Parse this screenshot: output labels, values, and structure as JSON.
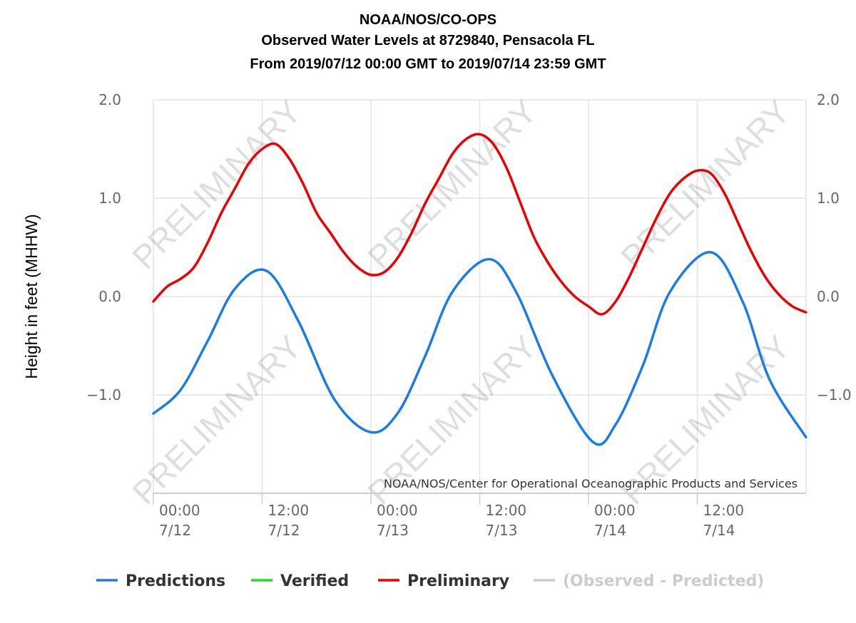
{
  "chart_data": {
    "type": "line",
    "title": [
      "NOAA/NOS/CO-OPS",
      "Observed Water Levels at 8729840, Pensacola FL",
      "From 2019/07/12 00:00 GMT to 2019/07/14 23:59 GMT"
    ],
    "ylabel": "Height in feet (MHHW)",
    "ylim": [
      -2.0,
      2.0
    ],
    "xlim": [
      "2019-07-12T00:00",
      "2019-07-15T00:00"
    ],
    "y_ticks": [
      {
        "value": 2.0,
        "label": "2.0"
      },
      {
        "value": 1.0,
        "label": "1.0"
      },
      {
        "value": 0.0,
        "label": "0.0"
      },
      {
        "value": -1.0,
        "label": "−1.0"
      }
    ],
    "x_ticks": [
      {
        "time": "2019-07-12T00:00",
        "time_label": "00:00",
        "date_label": "7/12"
      },
      {
        "time": "2019-07-12T12:00",
        "time_label": "12:00",
        "date_label": "7/12"
      },
      {
        "time": "2019-07-13T00:00",
        "time_label": "00:00",
        "date_label": "7/13"
      },
      {
        "time": "2019-07-13T12:00",
        "time_label": "12:00",
        "date_label": "7/13"
      },
      {
        "time": "2019-07-14T00:00",
        "time_label": "00:00",
        "date_label": "7/14"
      },
      {
        "time": "2019-07-14T12:00",
        "time_label": "12:00",
        "date_label": "7/14"
      }
    ],
    "grid": true,
    "watermark_text": "PRELIMINARY",
    "credit": "NOAA/NOS/Center for Operational Oceanographic Products and Services",
    "legend_position": "bottom",
    "legend": [
      {
        "name": "Predictions",
        "color": "#1a7de6"
      },
      {
        "name": "Verified",
        "color": "#22dd22"
      },
      {
        "name": "Preliminary",
        "color": "#ee0000"
      },
      {
        "name": "(Observed - Predicted)",
        "color": "#cccccc"
      }
    ],
    "series": [
      {
        "name": "Predictions",
        "color": "#1a7de6",
        "points": [
          [
            "2019-07-12T00:00",
            -1.19
          ],
          [
            "2019-07-12T03:00",
            -0.95
          ],
          [
            "2019-07-12T06:00",
            -0.45
          ],
          [
            "2019-07-12T09:00",
            0.08
          ],
          [
            "2019-07-12T12:30",
            0.26
          ],
          [
            "2019-07-12T16:00",
            -0.25
          ],
          [
            "2019-07-12T20:00",
            -1.05
          ],
          [
            "2019-07-13T00:00",
            -1.38
          ],
          [
            "2019-07-13T03:00",
            -1.18
          ],
          [
            "2019-07-13T06:00",
            -0.6
          ],
          [
            "2019-07-13T09:00",
            0.05
          ],
          [
            "2019-07-13T13:00",
            0.38
          ],
          [
            "2019-07-13T16:00",
            0.05
          ],
          [
            "2019-07-13T20:00",
            -0.8
          ],
          [
            "2019-07-14T00:30",
            -1.48
          ],
          [
            "2019-07-14T03:00",
            -1.3
          ],
          [
            "2019-07-14T06:00",
            -0.7
          ],
          [
            "2019-07-14T09:00",
            0.05
          ],
          [
            "2019-07-14T13:30",
            0.45
          ],
          [
            "2019-07-14T17:00",
            -0.05
          ],
          [
            "2019-07-14T20:00",
            -0.85
          ],
          [
            "2019-07-14T23:59",
            -1.43
          ]
        ]
      },
      {
        "name": "Preliminary",
        "color": "#ee0000",
        "points": [
          [
            "2019-07-12T00:00",
            -0.05
          ],
          [
            "2019-07-12T01:30",
            0.1
          ],
          [
            "2019-07-12T03:00",
            0.18
          ],
          [
            "2019-07-12T04:30",
            0.3
          ],
          [
            "2019-07-12T06:00",
            0.55
          ],
          [
            "2019-07-12T07:30",
            0.85
          ],
          [
            "2019-07-12T09:00",
            1.1
          ],
          [
            "2019-07-12T10:30",
            1.35
          ],
          [
            "2019-07-12T12:00",
            1.5
          ],
          [
            "2019-07-12T13:30",
            1.55
          ],
          [
            "2019-07-12T15:00",
            1.4
          ],
          [
            "2019-07-12T16:30",
            1.15
          ],
          [
            "2019-07-12T18:00",
            0.85
          ],
          [
            "2019-07-12T19:30",
            0.65
          ],
          [
            "2019-07-12T21:00",
            0.45
          ],
          [
            "2019-07-12T22:30",
            0.3
          ],
          [
            "2019-07-13T00:00",
            0.22
          ],
          [
            "2019-07-13T01:30",
            0.25
          ],
          [
            "2019-07-13T03:00",
            0.4
          ],
          [
            "2019-07-13T04:30",
            0.65
          ],
          [
            "2019-07-13T06:00",
            0.95
          ],
          [
            "2019-07-13T07:30",
            1.2
          ],
          [
            "2019-07-13T09:00",
            1.45
          ],
          [
            "2019-07-13T10:30",
            1.6
          ],
          [
            "2019-07-13T12:00",
            1.65
          ],
          [
            "2019-07-13T13:30",
            1.55
          ],
          [
            "2019-07-13T15:00",
            1.3
          ],
          [
            "2019-07-13T16:30",
            0.95
          ],
          [
            "2019-07-13T18:00",
            0.6
          ],
          [
            "2019-07-13T19:30",
            0.35
          ],
          [
            "2019-07-13T21:00",
            0.15
          ],
          [
            "2019-07-13T22:30",
            0.0
          ],
          [
            "2019-07-14T00:00",
            -0.1
          ],
          [
            "2019-07-14T01:30",
            -0.18
          ],
          [
            "2019-07-14T03:00",
            -0.05
          ],
          [
            "2019-07-14T04:30",
            0.2
          ],
          [
            "2019-07-14T06:00",
            0.5
          ],
          [
            "2019-07-14T07:30",
            0.8
          ],
          [
            "2019-07-14T09:00",
            1.05
          ],
          [
            "2019-07-14T10:30",
            1.2
          ],
          [
            "2019-07-14T12:00",
            1.28
          ],
          [
            "2019-07-14T13:30",
            1.25
          ],
          [
            "2019-07-14T15:00",
            1.05
          ],
          [
            "2019-07-14T16:30",
            0.75
          ],
          [
            "2019-07-14T18:00",
            0.45
          ],
          [
            "2019-07-14T19:30",
            0.2
          ],
          [
            "2019-07-14T21:00",
            0.02
          ],
          [
            "2019-07-14T22:30",
            -0.1
          ],
          [
            "2019-07-14T23:59",
            -0.16
          ]
        ]
      }
    ]
  }
}
